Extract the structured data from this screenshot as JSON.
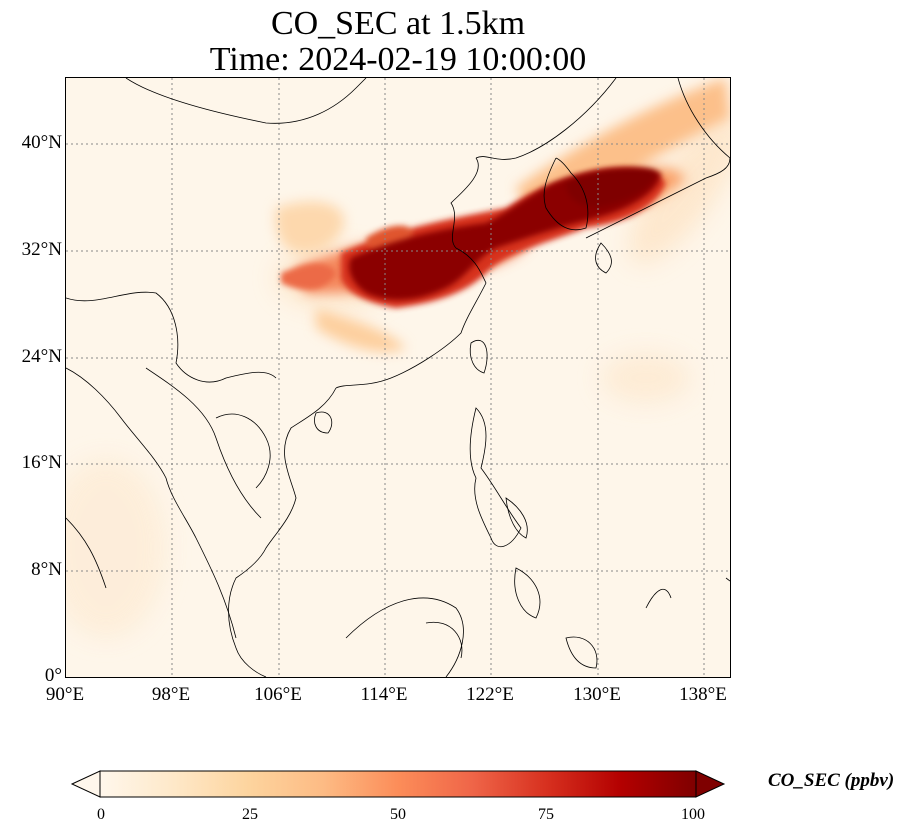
{
  "title_line1": "CO_SEC at 1.5km",
  "title_line2": "Time: 2024-02-19 10:00:00",
  "map": {
    "extent": {
      "lon_min": 90,
      "lon_max": 140,
      "lat_min": 0,
      "lat_max": 45
    },
    "lat_ticks": [
      {
        "value": 40,
        "label": "40°N"
      },
      {
        "value": 32,
        "label": "32°N"
      },
      {
        "value": 24,
        "label": "24°N"
      },
      {
        "value": 16,
        "label": "16°N"
      },
      {
        "value": 8,
        "label": "8°N"
      },
      {
        "value": 0,
        "label": "0°"
      }
    ],
    "lon_ticks": [
      {
        "value": 90,
        "label": "90°E"
      },
      {
        "value": 98,
        "label": "98°E"
      },
      {
        "value": 106,
        "label": "106°E"
      },
      {
        "value": 114,
        "label": "114°E"
      },
      {
        "value": 122,
        "label": "122°E"
      },
      {
        "value": 130,
        "label": "130°E"
      },
      {
        "value": 138,
        "label": "138°E"
      }
    ],
    "gridlines": true
  },
  "colorbar": {
    "label": "CO_SEC (ppbv)",
    "min": 0,
    "max": 100,
    "ticks": [
      "0",
      "25",
      "50",
      "75",
      "100"
    ],
    "colormap": "OrRd",
    "stops": [
      "#fff7ec",
      "#fee8c8",
      "#fdd49e",
      "#fdbb84",
      "#fc8d59",
      "#ef6548",
      "#d7301f",
      "#b30000",
      "#7f0000"
    ],
    "extend": "both"
  }
}
